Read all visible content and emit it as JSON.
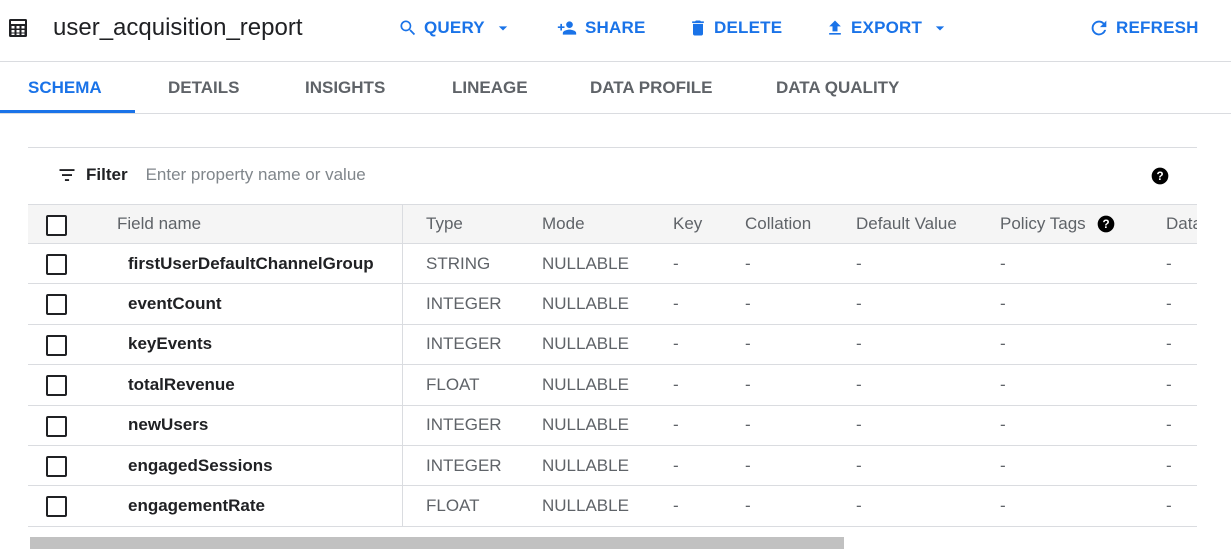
{
  "header": {
    "title": "user_acquisition_report",
    "table_icon": "table-icon",
    "actions": [
      {
        "label": "QUERY",
        "icon": "search-icon",
        "dropdown": true
      },
      {
        "label": "SHARE",
        "icon": "person-add-icon"
      },
      {
        "label": "DELETE",
        "icon": "trash-icon"
      },
      {
        "label": "EXPORT",
        "icon": "upload-icon",
        "dropdown": true
      },
      {
        "label": "REFRESH",
        "icon": "refresh-icon"
      }
    ]
  },
  "tabs": [
    {
      "label": "SCHEMA",
      "active": true
    },
    {
      "label": "DETAILS"
    },
    {
      "label": "INSIGHTS"
    },
    {
      "label": "LINEAGE"
    },
    {
      "label": "DATA PROFILE"
    },
    {
      "label": "DATA QUALITY"
    }
  ],
  "filter": {
    "label": "Filter",
    "placeholder": "Enter property name or value",
    "value": ""
  },
  "table": {
    "columns": [
      "Field name",
      "Type",
      "Mode",
      "Key",
      "Collation",
      "Default Value",
      "Policy Tags",
      "Data"
    ],
    "rows": [
      [
        "firstUserDefaultChannelGroup",
        "STRING",
        "NULLABLE",
        "-",
        "-",
        "-",
        "-",
        "-"
      ],
      [
        "eventCount",
        "INTEGER",
        "NULLABLE",
        "-",
        "-",
        "-",
        "-",
        "-"
      ],
      [
        "keyEvents",
        "INTEGER",
        "NULLABLE",
        "-",
        "-",
        "-",
        "-",
        "-"
      ],
      [
        "totalRevenue",
        "FLOAT",
        "NULLABLE",
        "-",
        "-",
        "-",
        "-",
        "-"
      ],
      [
        "newUsers",
        "INTEGER",
        "NULLABLE",
        "-",
        "-",
        "-",
        "-",
        "-"
      ],
      [
        "engagedSessions",
        "INTEGER",
        "NULLABLE",
        "-",
        "-",
        "-",
        "-",
        "-"
      ],
      [
        "engagementRate",
        "FLOAT",
        "NULLABLE",
        "-",
        "-",
        "-",
        "-",
        "-"
      ]
    ]
  },
  "colors": {
    "accent": "#1a73e8",
    "text": "#202124",
    "muted": "#5f6368"
  }
}
